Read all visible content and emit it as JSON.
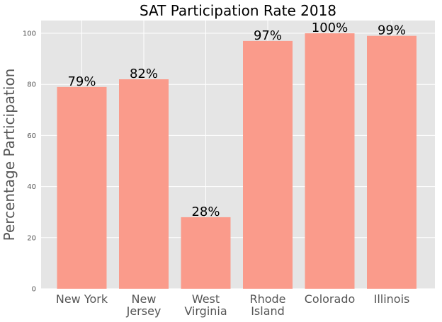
{
  "chart_data": {
    "type": "bar",
    "title": "SAT Participation Rate 2018",
    "xlabel": "",
    "ylabel": "Percentage Participation",
    "categories": [
      [
        "New York"
      ],
      [
        "New",
        "Jersey"
      ],
      [
        "West",
        "Virginia"
      ],
      [
        "Rhode",
        "Island"
      ],
      [
        "Colorado"
      ],
      [
        "Illinois"
      ]
    ],
    "values": [
      79,
      82,
      28,
      97,
      100,
      99
    ],
    "data_labels": [
      "79%",
      "82%",
      "28%",
      "97%",
      "100%",
      "99%"
    ],
    "yticks": [
      0,
      20,
      40,
      60,
      80,
      100
    ],
    "ylim": [
      0,
      105
    ],
    "grid": true,
    "colors": {
      "bar": "#fa9b8b",
      "plot_background": "#e5e5e5",
      "grid": "#ffffff"
    }
  }
}
